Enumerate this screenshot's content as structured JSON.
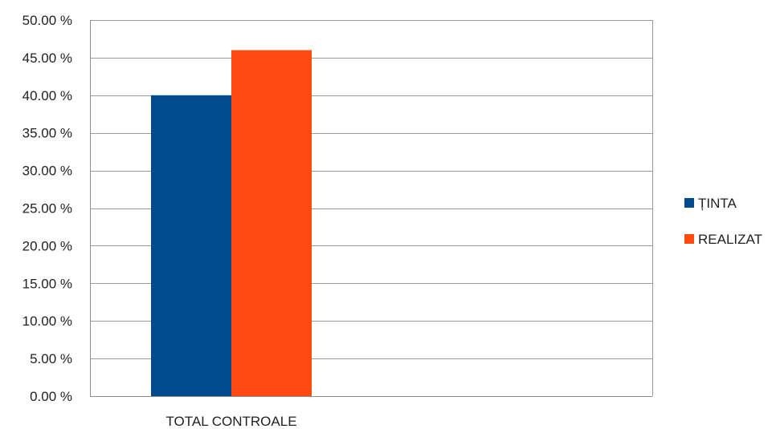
{
  "chart_data": {
    "type": "bar",
    "categories": [
      "TOTAL CONTROALE"
    ],
    "series": [
      {
        "name": "ȚINTA",
        "values": [
          40.0
        ],
        "color": "#004B8D"
      },
      {
        "name": "REALIZAT",
        "values": [
          46.0
        ],
        "color": "#FF4A12"
      }
    ],
    "ylim": [
      0,
      50
    ],
    "yticks": [
      0,
      5,
      10,
      15,
      20,
      25,
      30,
      35,
      40,
      45,
      50
    ],
    "ytick_labels": [
      "0.00 %",
      "5.00 %",
      "10.00 %",
      "15.00 %",
      "20.00 %",
      "25.00 %",
      "30.00 %",
      "35.00 %",
      "40.00 %",
      "45.00 %",
      "50.00 %"
    ],
    "grid": true,
    "legend_position": "right"
  }
}
